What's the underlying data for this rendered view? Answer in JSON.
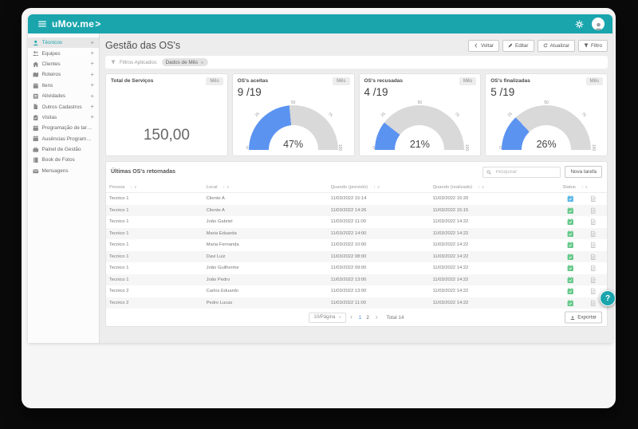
{
  "colors": {
    "teal": "#1aa5ad",
    "gauge_blue": "#5b93f1",
    "gauge_gray": "#d9d9d9",
    "status_green": "#63c888",
    "status_blue": "#5ab6e6",
    "page_blue": "#4a90e2"
  },
  "header": {
    "logo_text": "uMov.me",
    "logo_chevron": ">"
  },
  "sidebar": {
    "items": [
      {
        "label": "Técnicos",
        "icon": "person-icon",
        "expandable": true,
        "active": true
      },
      {
        "label": "Equipes",
        "icon": "people-icon",
        "expandable": true
      },
      {
        "label": "Clientes",
        "icon": "home-icon",
        "expandable": true
      },
      {
        "label": "Roteiros",
        "icon": "map-icon",
        "expandable": true
      },
      {
        "label": "Itens",
        "icon": "box-icon",
        "expandable": true
      },
      {
        "label": "Atividades",
        "icon": "list-icon",
        "expandable": true
      },
      {
        "label": "Outros Cadastros",
        "icon": "document-icon",
        "expandable": true
      },
      {
        "label": "Visitas",
        "icon": "clipboard-icon",
        "expandable": true
      },
      {
        "label": "Programação de tarefas",
        "icon": "calendar-icon"
      },
      {
        "label": "Ausências Programadas",
        "icon": "calendar-icon"
      },
      {
        "label": "Painel de Gestão",
        "icon": "briefcase-icon"
      },
      {
        "label": "Book de Fotos",
        "icon": "book-icon"
      },
      {
        "label": "Mensagens",
        "icon": "envelope-icon"
      }
    ]
  },
  "page": {
    "title": "Gestão das OS's",
    "actions": [
      {
        "label": "Voltar",
        "icon": "back-icon"
      },
      {
        "label": "Editar",
        "icon": "pencil-icon"
      },
      {
        "label": "Atualizar",
        "icon": "refresh-icon"
      },
      {
        "label": "Filtro",
        "icon": "filter-icon"
      }
    ],
    "filters_label": "Filtros Aplicados:",
    "filter_chip": "Dados de Mês"
  },
  "cards": {
    "total": {
      "title": "Total de Serviços",
      "badge": "Mês",
      "value": "150,00"
    },
    "gauge_ticks": [
      "0",
      "25",
      "50",
      "75",
      "100"
    ],
    "gauges": [
      {
        "title": "OS's aceitas",
        "badge": "Mês",
        "fraction": "9 /19",
        "percent": 47,
        "percent_label": "47%"
      },
      {
        "title": "OS's recusadas",
        "badge": "Mês",
        "fraction": "4 /19",
        "percent": 21,
        "percent_label": "21%"
      },
      {
        "title": "OS's finalizadas",
        "badge": "Mês",
        "fraction": "5 /19",
        "percent": 26,
        "percent_label": "26%"
      }
    ]
  },
  "table": {
    "title": "Últimas OS's retornadas",
    "search_placeholder": "Pesquisar",
    "new_task_label": "Nova tarefa",
    "columns": [
      "Pessoa",
      "Local",
      "Quando (previsto)",
      "Quando (realizado)",
      "Status"
    ],
    "rows": [
      {
        "pessoa": "Tecnico 1",
        "local": "Cliente A",
        "previsto": "11/03/2022 15:14",
        "realizado": "11/03/2022 15:20",
        "status": "blue"
      },
      {
        "pessoa": "Tecnico 1",
        "local": "Cliente A",
        "previsto": "11/03/2022 14:26",
        "realizado": "11/03/2022 15:15",
        "status": "green"
      },
      {
        "pessoa": "Tecnico 1",
        "local": "João Gabriel",
        "previsto": "11/03/2022 11:00",
        "realizado": "11/03/2022 14:22",
        "status": "green"
      },
      {
        "pessoa": "Tecnico 1",
        "local": "Maria Eduarda",
        "previsto": "11/03/2022 14:00",
        "realizado": "11/03/2022 14:22",
        "status": "green"
      },
      {
        "pessoa": "Tecnico 1",
        "local": "Maria Fernanda",
        "previsto": "11/03/2022 10:00",
        "realizado": "11/03/2022 14:22",
        "status": "green"
      },
      {
        "pessoa": "Tecnico 1",
        "local": "Davi Luiz",
        "previsto": "11/03/2022 08:00",
        "realizado": "11/03/2022 14:22",
        "status": "green"
      },
      {
        "pessoa": "Tecnico 1",
        "local": "João Guilherme",
        "previsto": "11/03/2022 09:00",
        "realizado": "11/03/2022 14:22",
        "status": "green"
      },
      {
        "pessoa": "Tecnico 1",
        "local": "João Pedro",
        "previsto": "11/03/2022 13:00",
        "realizado": "11/03/2022 14:22",
        "status": "green"
      },
      {
        "pessoa": "Tecnico 2",
        "local": "Carlos Eduardo",
        "previsto": "11/03/2022 13:00",
        "realizado": "11/03/2022 14:22",
        "status": "green"
      },
      {
        "pessoa": "Tecnico 2",
        "local": "Pedro Lucas",
        "previsto": "11/03/2022 11:00",
        "realizado": "11/03/2022 14:22",
        "status": "green"
      }
    ],
    "pagination": {
      "page_size": "10/Página",
      "pages": [
        "1",
        "2"
      ],
      "active_page": "1",
      "total": "Total 14",
      "export_label": "Exportar"
    }
  },
  "help_label": "?"
}
